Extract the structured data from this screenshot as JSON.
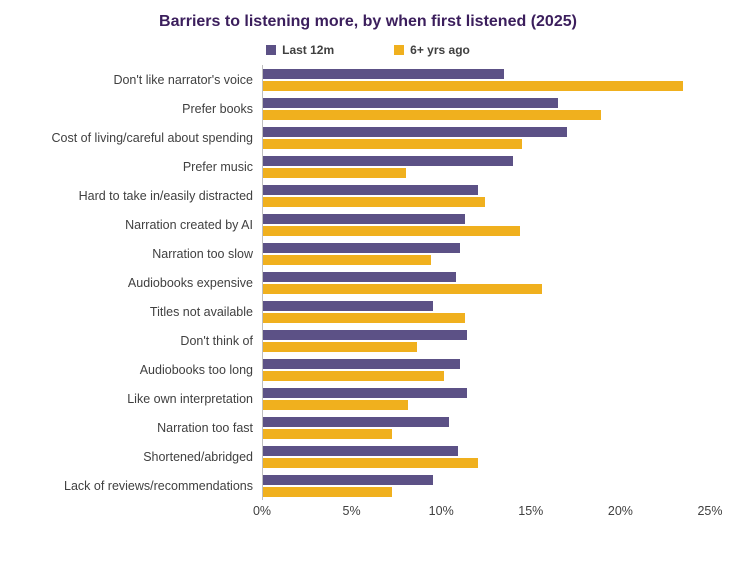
{
  "chart_data": {
    "type": "bar",
    "orientation": "horizontal",
    "title": "Barriers to listening more, by when first listened (2025)",
    "categories": [
      "Don't like narrator's voice",
      "Prefer books",
      "Cost of living/careful about spending",
      "Prefer music",
      "Hard to take in/easily distracted",
      "Narration created by AI",
      "Narration too slow",
      "Audiobooks expensive",
      "Titles not available",
      "Don't think of",
      "Audiobooks too long",
      "Like own interpretation",
      "Narration too fast",
      "Shortened/abridged",
      "Lack of reviews/recommendations"
    ],
    "series": [
      {
        "name": "Last 12m",
        "color": "#5c5186",
        "values": [
          13.5,
          16.5,
          17.0,
          14.0,
          12.0,
          11.3,
          11.0,
          10.8,
          9.5,
          11.4,
          11.0,
          11.4,
          10.4,
          10.9,
          9.5
        ]
      },
      {
        "name": "6+ yrs ago",
        "color": "#f0b01e",
        "values": [
          23.5,
          18.9,
          14.5,
          8.0,
          12.4,
          14.4,
          9.4,
          15.6,
          11.3,
          8.6,
          10.1,
          8.1,
          7.2,
          12.0,
          7.2
        ]
      }
    ],
    "xlim": [
      0,
      25
    ],
    "x_ticks": [
      "0%",
      "5%",
      "10%",
      "15%",
      "20%",
      "25%"
    ],
    "grid": false,
    "legend_position": "top"
  },
  "colors": {
    "title": "#3b1e5c",
    "axis_text": "#404040",
    "axis_line": "#bfbfbf"
  }
}
